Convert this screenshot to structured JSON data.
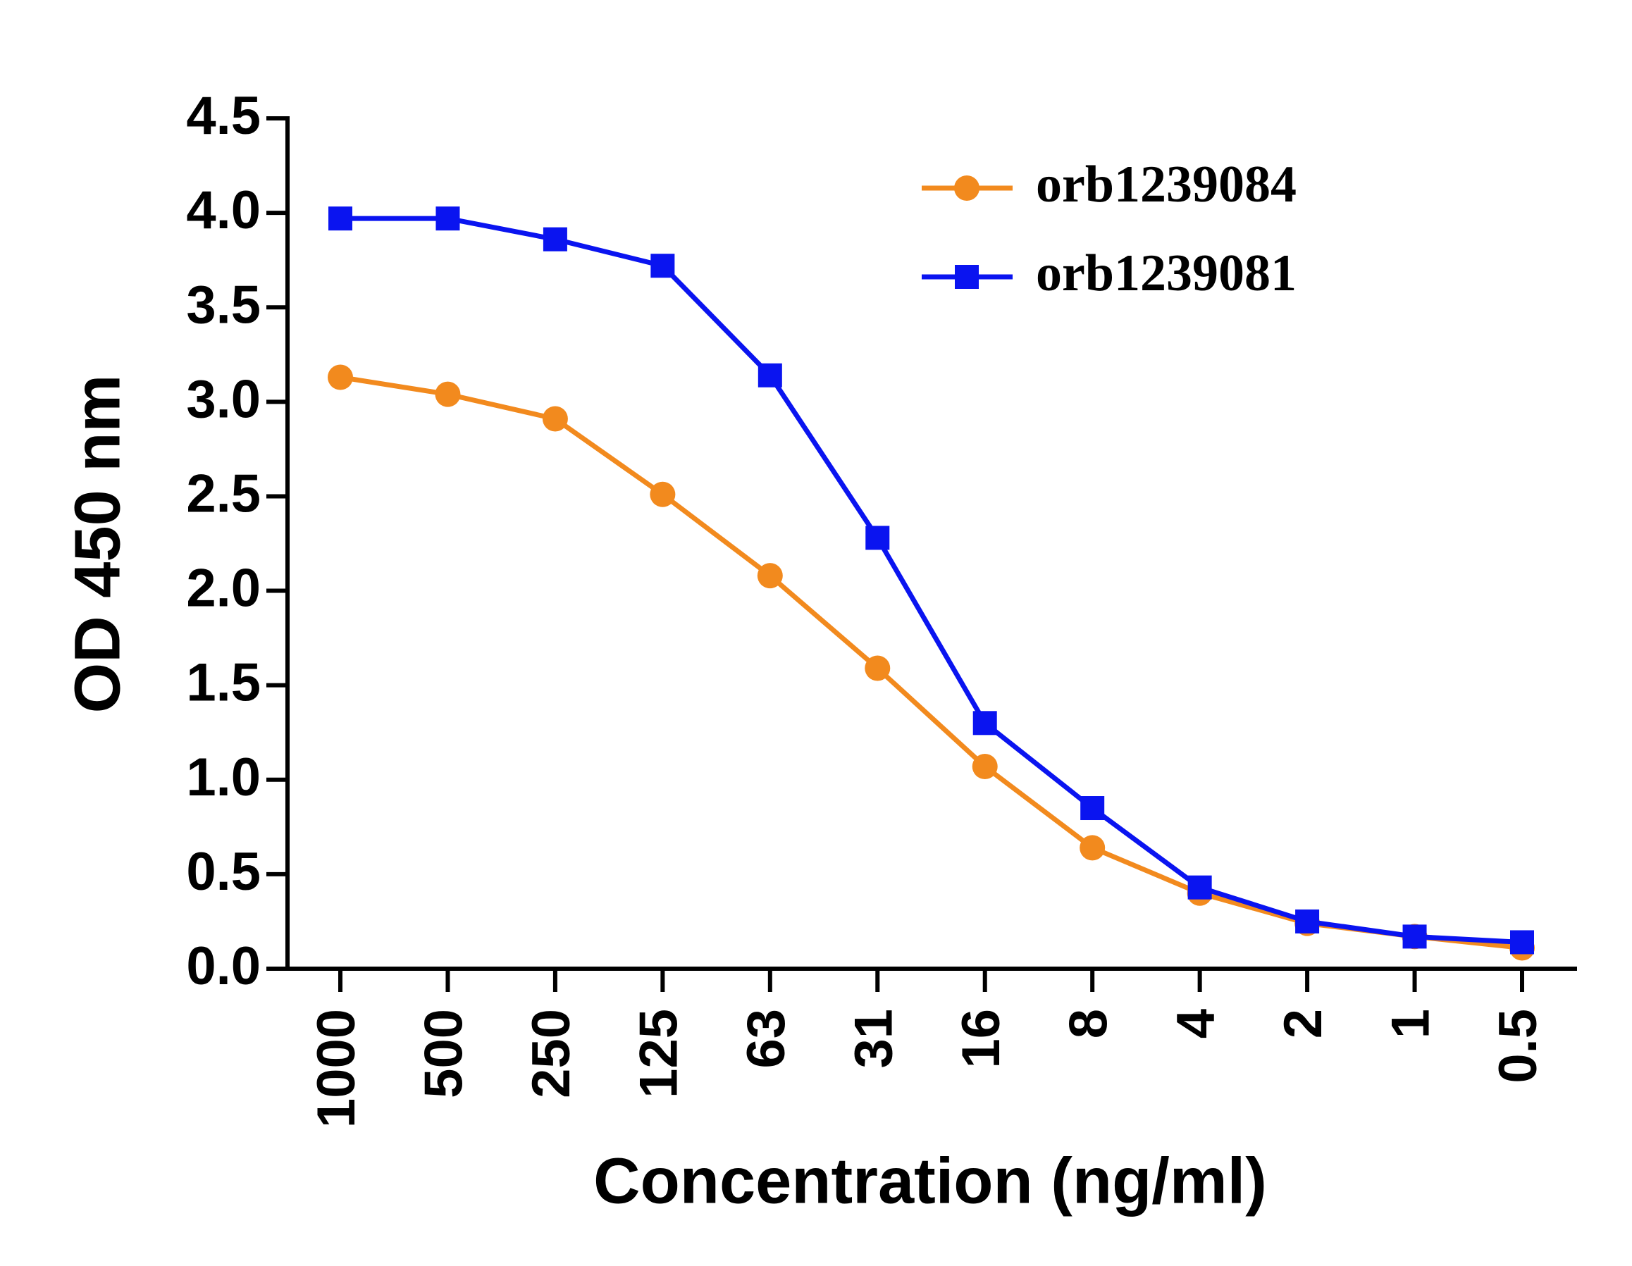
{
  "chart_data": {
    "type": "line",
    "xlabel": "Concentration (ng/ml)",
    "ylabel": "OD 450 nm",
    "categories": [
      "1000",
      "500",
      "250",
      "125",
      "63",
      "31",
      "16",
      "8",
      "4",
      "2",
      "1",
      "0.5"
    ],
    "series": [
      {
        "name": "orb1239084",
        "color": "#f28a1e",
        "marker": "circle",
        "values": [
          3.13,
          3.04,
          2.91,
          2.51,
          2.08,
          1.59,
          1.07,
          0.64,
          0.4,
          0.24,
          0.17,
          0.11
        ]
      },
      {
        "name": "orb1239081",
        "color": "#0a14f0",
        "marker": "square",
        "values": [
          3.97,
          3.97,
          3.86,
          3.72,
          3.14,
          2.28,
          1.3,
          0.85,
          0.43,
          0.25,
          0.17,
          0.14
        ]
      }
    ],
    "ylim": [
      0,
      4.5
    ],
    "yticks": [
      {
        "value": 0,
        "label": "0.0"
      },
      0.5,
      {
        "value": 1,
        "label": "1.0"
      },
      1.5,
      {
        "value": 2,
        "label": "2.0"
      },
      2.5,
      {
        "value": 3,
        "label": "3.0"
      },
      3.5,
      {
        "value": 4,
        "label": "4.0"
      },
      4.5
    ],
    "legend": "upper right"
  }
}
